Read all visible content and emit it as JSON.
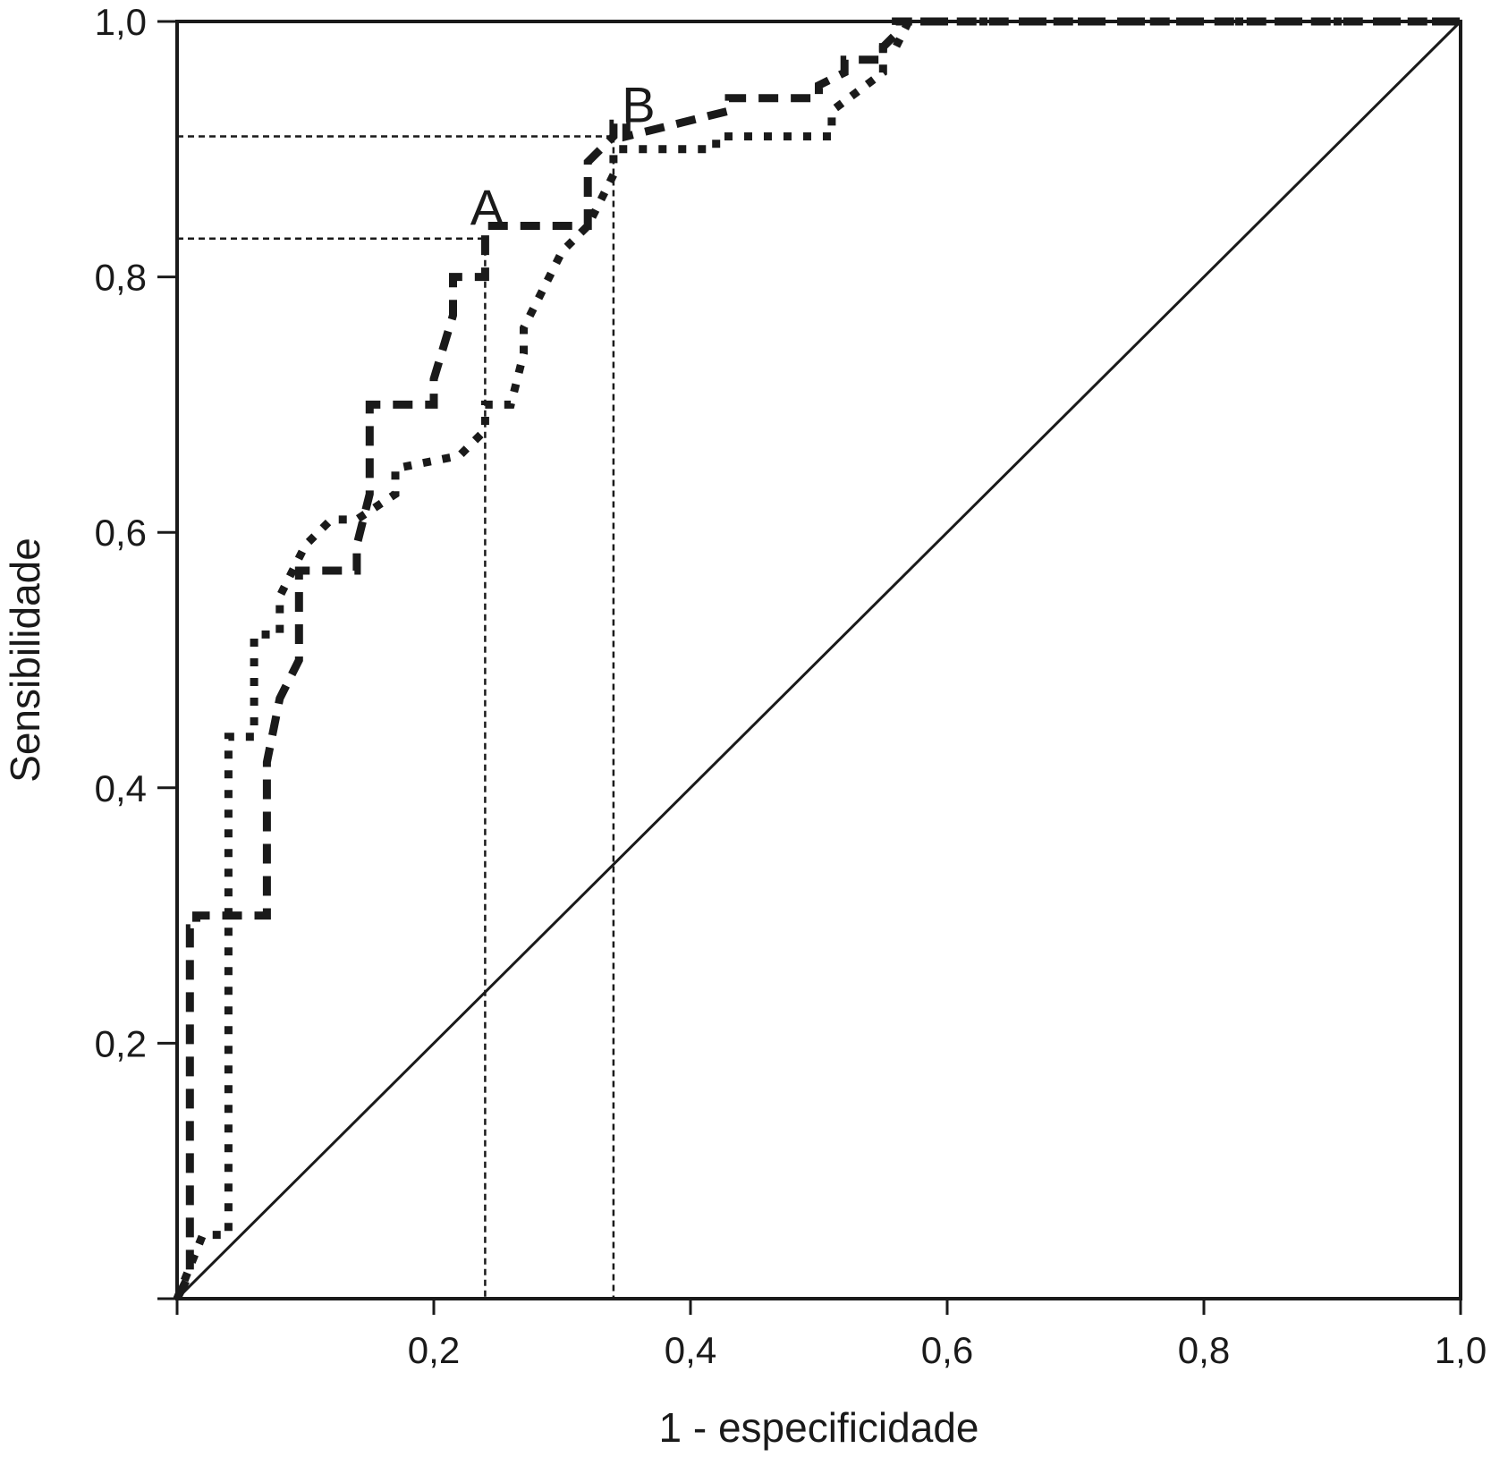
{
  "chart_data": {
    "type": "line",
    "title": "",
    "xlabel": "1 - especificidade",
    "ylabel": "Sensibilidade",
    "xlim": [
      0,
      1
    ],
    "ylim": [
      0,
      1
    ],
    "x_ticks": [
      {
        "value": 0.2,
        "label": "0,2"
      },
      {
        "value": 0.4,
        "label": "0,4"
      },
      {
        "value": 0.6,
        "label": "0,6"
      },
      {
        "value": 0.8,
        "label": "0,8"
      },
      {
        "value": 1.0,
        "label": "1,0"
      }
    ],
    "y_ticks": [
      {
        "value": 0.2,
        "label": "0,2"
      },
      {
        "value": 0.4,
        "label": "0,4"
      },
      {
        "value": 0.6,
        "label": "0,6"
      },
      {
        "value": 0.8,
        "label": "0,8"
      },
      {
        "value": 1.0,
        "label": "1,0"
      }
    ],
    "grid": false,
    "series": [
      {
        "style": "dashed",
        "x": [
          0,
          0.01,
          0.01,
          0.015,
          0.015,
          0.045,
          0.045,
          0.07,
          0.07,
          0.08,
          0.08,
          0.095,
          0.095,
          0.14,
          0.14,
          0.15,
          0.15,
          0.2,
          0.2,
          0.215,
          0.215,
          0.24,
          0.24,
          0.32,
          0.32,
          0.34,
          0.34,
          0.35,
          0.35,
          0.43,
          0.43,
          0.5,
          0.5,
          0.52,
          0.52,
          0.55,
          0.55,
          0.56,
          0.56,
          1
        ],
        "y": [
          0,
          0.02,
          0.29,
          0.29,
          0.3,
          0.3,
          0.3,
          0.3,
          0.42,
          0.47,
          0.47,
          0.5,
          0.57,
          0.57,
          0.59,
          0.63,
          0.7,
          0.7,
          0.72,
          0.77,
          0.8,
          0.8,
          0.84,
          0.84,
          0.89,
          0.91,
          0.92,
          0.92,
          0.91,
          0.93,
          0.94,
          0.94,
          0.95,
          0.96,
          0.97,
          0.97,
          0.98,
          0.99,
          1.0,
          1.0
        ]
      },
      {
        "style": "dotted",
        "x": [
          0,
          0.02,
          0.04,
          0.04,
          0.06,
          0.06,
          0.08,
          0.08,
          0.1,
          0.12,
          0.14,
          0.17,
          0.17,
          0.22,
          0.24,
          0.24,
          0.26,
          0.27,
          0.27,
          0.3,
          0.32,
          0.34,
          0.34,
          0.42,
          0.42,
          0.51,
          0.51,
          0.55,
          0.55,
          0.56,
          0.57,
          1
        ],
        "y": [
          0,
          0.05,
          0.05,
          0.44,
          0.44,
          0.52,
          0.52,
          0.55,
          0.59,
          0.61,
          0.61,
          0.63,
          0.65,
          0.66,
          0.68,
          0.7,
          0.7,
          0.74,
          0.76,
          0.82,
          0.84,
          0.88,
          0.9,
          0.9,
          0.91,
          0.91,
          0.93,
          0.96,
          0.98,
          0.98,
          1.0,
          1.0
        ]
      }
    ],
    "reference_line": {
      "x": [
        0,
        1
      ],
      "y": [
        0,
        1
      ],
      "style": "solid"
    },
    "annotations": [
      {
        "label": "A",
        "x": 0.24,
        "y": 0.83
      },
      {
        "label": "B",
        "x": 0.34,
        "y": 0.91
      }
    ]
  }
}
